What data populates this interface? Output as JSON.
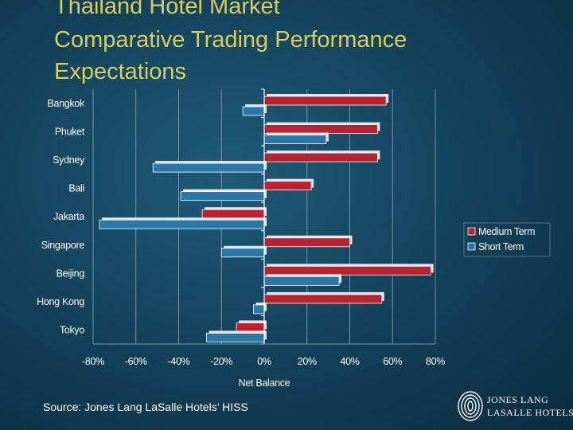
{
  "titles": {
    "line1": "Thailand Hotel Market",
    "line2": "Comparative Trading Performance",
    "line3": "Expectations"
  },
  "source": "Source: Jones Lang LaSalle Hotels’ HISS",
  "logo": {
    "line1": "JONES LANG",
    "line2": "LASALLE HOTELS."
  },
  "colors": {
    "medium": "#b8232f",
    "short": "#2a78a8",
    "background": "#123f58"
  },
  "chart_data": {
    "type": "bar",
    "orientation": "horizontal",
    "categories": [
      "Bangkok",
      "Phuket",
      "Sydney",
      "Bali",
      "Jakarta",
      "Singapore",
      "Beijing",
      "Hong Kong",
      "Tokyo"
    ],
    "series": [
      {
        "name": "Medium Term",
        "values": [
          57,
          53,
          53,
          22,
          -29,
          40,
          78,
          55,
          -13
        ]
      },
      {
        "name": "Short Term",
        "values": [
          -10,
          29,
          -52,
          -39,
          -77,
          -20,
          35,
          -5,
          -27
        ]
      }
    ],
    "xlabel": "Net Balance",
    "xlim": [
      -80,
      80
    ],
    "xticks": [
      "-80%",
      "-60%",
      "-40%",
      "-20%",
      "0%",
      "20%",
      "40%",
      "60%",
      "80%"
    ],
    "xtick_values": [
      -80,
      -60,
      -40,
      -20,
      0,
      20,
      40,
      60,
      80
    ],
    "legend_position": "right",
    "grid": true
  }
}
